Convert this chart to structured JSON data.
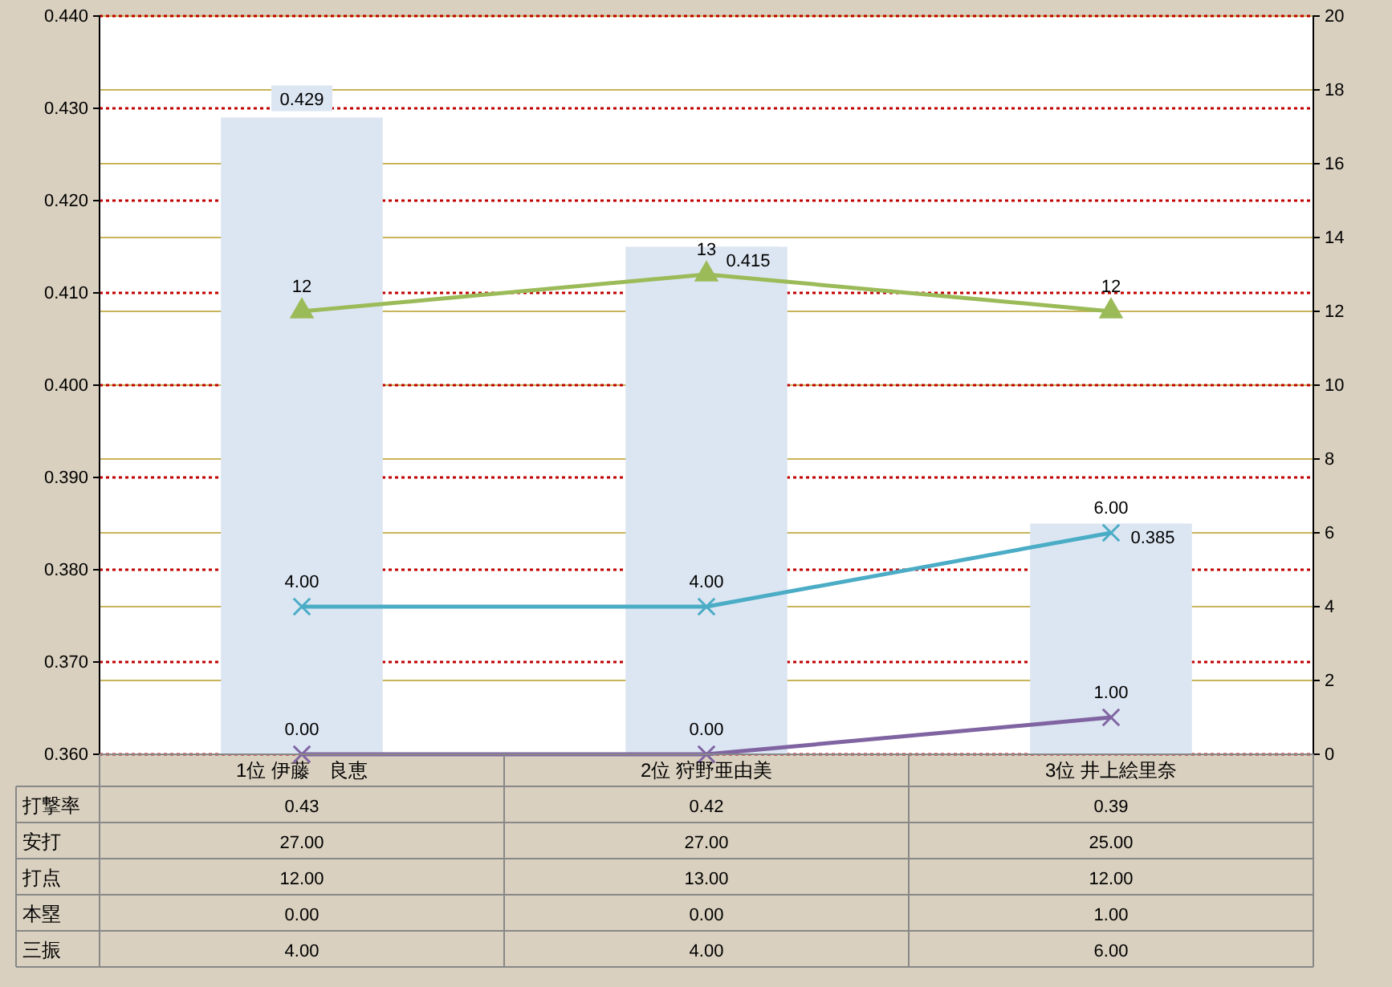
{
  "chart_data": [
    {
      "type": "bar",
      "categories": [
        null,
        null,
        null
      ],
      "series": [
        {
          "color": "#dce6f2",
          "values": [
            0.429,
            0.415,
            0.385
          ],
          "value_labels": [
            "0.429",
            "0.415",
            "0.385"
          ]
        },
        {
          "type": "line",
          "axis": "y2",
          "color": "#9bbb59",
          "marker": "triangle",
          "values": [
            12,
            13,
            12
          ],
          "value_labels": [
            "12",
            "13",
            "12"
          ]
        },
        {
          "type": "line",
          "axis": "y2",
          "color": "#8064a2",
          "marker": "cross",
          "values": [
            0,
            0,
            1
          ],
          "value_labels": [
            "0.00",
            "0.00",
            "1.00"
          ]
        },
        {
          "type": "line",
          "axis": "y2",
          "color": "#4bacc6",
          "marker": "cross",
          "values": [
            4,
            4,
            6
          ],
          "value_labels": [
            "4.00",
            "4.00",
            "6.00"
          ]
        }
      ],
      "ylim": [
        0.36,
        0.44
      ],
      "yticks": [
        {
          "value": 0.36,
          "label": "0.360"
        },
        {
          "value": 0.37,
          "label": "0.370"
        },
        {
          "value": 0.38,
          "label": "0.380"
        },
        {
          "value": 0.39,
          "label": "0.390"
        },
        {
          "value": 0.4,
          "label": "0.400"
        },
        {
          "value": 0.41,
          "label": "0.410"
        },
        {
          "value": 0.42,
          "label": "0.420"
        },
        {
          "value": 0.43,
          "label": "0.430"
        },
        {
          "value": 0.44,
          "label": "0.440"
        }
      ],
      "y2lim": [
        0,
        20
      ],
      "y2ticks": [
        0,
        2,
        4,
        6,
        8,
        10,
        12,
        14,
        16,
        18,
        20
      ],
      "grid": true
    },
    {
      "type": "other",
      "data_labels": true,
      "categories": [
        "1位 伊藤　良恵",
        "2位 狩野亜由美",
        "3位 井上絵里奈"
      ],
      "series": [
        {
          "name": "打撃率",
          "values": [
            0.43,
            0.42,
            0.39
          ],
          "value_labels": [
            "0.43",
            "0.42",
            "0.39"
          ]
        },
        {
          "name": "安打",
          "values": [
            27,
            27,
            25
          ],
          "value_labels": [
            "27.00",
            "27.00",
            "25.00"
          ]
        },
        {
          "name": "打点",
          "values": [
            12,
            13,
            12
          ],
          "value_labels": [
            "12.00",
            "13.00",
            "12.00"
          ]
        },
        {
          "name": "本塁",
          "values": [
            0,
            0,
            1
          ],
          "value_labels": [
            "0.00",
            "0.00",
            "1.00"
          ]
        },
        {
          "name": "三振",
          "values": [
            4,
            4,
            6
          ],
          "value_labels": [
            "4.00",
            "4.00",
            "6.00"
          ]
        }
      ]
    }
  ]
}
